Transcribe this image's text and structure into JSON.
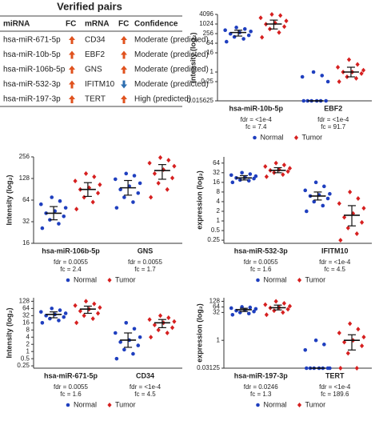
{
  "table": {
    "title": "Verified pairs",
    "header": [
      "miRNA",
      "FC",
      "mRNA",
      "FC",
      "Confidence"
    ],
    "rows": [
      {
        "mirna": "hsa-miR-671-5p",
        "mirna_fc": "up",
        "mrna": "CD34",
        "mrna_fc": "up",
        "confidence": "Moderate (predicted)"
      },
      {
        "mirna": "hsa-miR-10b-5p",
        "mirna_fc": "up",
        "mrna": "EBF2",
        "mrna_fc": "up",
        "confidence": "Moderate (predicted)"
      },
      {
        "mirna": "hsa-miR-106b-5p",
        "mirna_fc": "up",
        "mrna": "GNS",
        "mrna_fc": "up",
        "confidence": "Moderate (predicted)"
      },
      {
        "mirna": "hsa-miR-532-3p",
        "mirna_fc": "up",
        "mrna": "IFITM10",
        "mrna_fc": "down",
        "confidence": "Moderate (predicted)"
      },
      {
        "mirna": "hsa-miR-197-3p",
        "mirna_fc": "up",
        "mrna": "TERT",
        "mrna_fc": "up",
        "confidence": "High (predicted)"
      }
    ]
  },
  "chart_data": [
    {
      "type": "dot",
      "ylabel": "Intensity (log₂)",
      "log_base": 2,
      "categories": [
        "hsa-miR-10b-5p",
        "EBF2"
      ],
      "fdr": [
        "fdr = <1e-4",
        "fdr = <1e-4"
      ],
      "fc": [
        "fc = 7.4",
        "fc = 91.7"
      ],
      "ylim": [
        0.015625,
        4096
      ],
      "yticks": [
        0.015625,
        0.25,
        1,
        16,
        64,
        256,
        1024,
        4096
      ],
      "series": [
        {
          "name": "Normal",
          "color": "#1f3fbf",
          "marker": "circle",
          "points": [
            [
              80,
              120,
              160,
              200,
              250,
              300,
              350,
              420,
              500,
              620
            ],
            [
              0.015625,
              0.015625,
              0.015625,
              0.015625,
              0.015625,
              0.015625,
              0.25,
              0.5,
              0.6,
              1
            ]
          ],
          "medians": [
            300,
            0.015625
          ],
          "ranges": [
            [
              180,
              420
            ],
            [
              0.015625,
              0.015625
            ]
          ]
        },
        {
          "name": "Tumor",
          "color": "#d62020",
          "marker": "diamond",
          "points": [
            [
              150,
              300,
              500,
              700,
              1000,
              1200,
              1600,
              2500,
              3500,
              4096
            ],
            [
              0.25,
              0.4,
              0.5,
              0.8,
              1,
              1,
              1.3,
              2,
              3,
              6
            ]
          ],
          "medians": [
            1024,
            1
          ],
          "ranges": [
            [
              500,
              1800
            ],
            [
              0.5,
              2
            ]
          ]
        }
      ]
    },
    {
      "type": "dot",
      "ylabel": "Intensity (log₂)",
      "log_base": 2,
      "categories": [
        "hsa-miR-106b-5p",
        "GNS"
      ],
      "fdr": [
        "fdr = 0.0055",
        "fdr = 0.0055"
      ],
      "fc": [
        "fc = 2.4",
        "fc = 1.7"
      ],
      "ylim": [
        16,
        256
      ],
      "yticks": [
        16,
        32,
        64,
        128,
        256
      ],
      "series": [
        {
          "name": "Normal",
          "color": "#1f3fbf",
          "marker": "circle",
          "points": [
            [
              26,
              30,
              34,
              38,
              42,
              45,
              50,
              56,
              62,
              70
            ],
            [
              50,
              60,
              70,
              80,
              90,
              100,
              110,
              125,
              140,
              150
            ]
          ],
          "medians": [
            42,
            95
          ],
          "ranges": [
            [
              34,
              52
            ],
            [
              75,
              120
            ]
          ]
        },
        {
          "name": "Tumor",
          "color": "#d62020",
          "marker": "diamond",
          "points": [
            [
              48,
              60,
              70,
              80,
              90,
              95,
              105,
              118,
              135,
              150
            ],
            [
              70,
              90,
              110,
              130,
              150,
              170,
              190,
              210,
              230,
              250
            ]
          ],
          "medians": [
            90,
            165
          ],
          "ranges": [
            [
              72,
              112
            ],
            [
              125,
              200
            ]
          ]
        }
      ]
    },
    {
      "type": "dot",
      "ylabel": "expression (log₂)",
      "log_base": 2,
      "categories": [
        "hsa-miR-532-3p",
        "IFITM10"
      ],
      "fdr": [
        "fdr = 0.0055",
        "fdr = <1e-4"
      ],
      "fc": [
        "fc = 1.6",
        "fc = 4.5"
      ],
      "ylim": [
        0.2,
        100
      ],
      "yticks": [
        0.25,
        0.5,
        1,
        2,
        4,
        8,
        16,
        32,
        64
      ],
      "series": [
        {
          "name": "Normal",
          "color": "#1f3fbf",
          "marker": "circle",
          "points": [
            [
              16,
              18,
              19,
              21,
              22,
              23,
              25,
              27,
              29,
              32
            ],
            [
              2,
              3,
              4,
              5,
              6,
              6.5,
              7,
              9,
              12,
              16
            ]
          ],
          "medians": [
            22,
            6
          ],
          "ranges": [
            [
              19,
              26
            ],
            [
              4.5,
              8
            ]
          ]
        },
        {
          "name": "Tumor",
          "color": "#d62020",
          "marker": "diamond",
          "points": [
            [
              24,
              28,
              32,
              35,
              38,
              40,
              44,
              50,
              56,
              64
            ],
            [
              0.25,
              0.4,
              0.6,
              0.9,
              1.3,
              1.7,
              2.5,
              3.5,
              5,
              8
            ]
          ],
          "medians": [
            38,
            1.5
          ],
          "ranges": [
            [
              32,
              46
            ],
            [
              0.7,
              3
            ]
          ]
        }
      ]
    },
    {
      "type": "dot",
      "ylabel": "Intensity (log₂)",
      "log_base": 2,
      "categories": [
        "hsa-miR-671-5p",
        "CD34"
      ],
      "fdr": [
        "fdr = 0.0055",
        "fdr = <1e-4"
      ],
      "fc": [
        "fc = 1.6",
        "fc = 4.5"
      ],
      "ylim": [
        0.2,
        180
      ],
      "yticks": [
        0.25,
        0.5,
        1,
        2,
        4,
        8,
        16,
        32,
        64,
        128
      ],
      "series": [
        {
          "name": "Normal",
          "color": "#1f3fbf",
          "marker": "circle",
          "points": [
            [
              16,
              20,
              24,
              28,
              32,
              36,
              40,
              46,
              54,
              64
            ],
            [
              0.5,
              0.8,
              1.2,
              1.8,
              2.5,
              3,
              4,
              6,
              9,
              16
            ]
          ],
          "medians": [
            36,
            3
          ],
          "ranges": [
            [
              26,
              46
            ],
            [
              1.5,
              6
            ]
          ]
        },
        {
          "name": "Tumor",
          "color": "#d62020",
          "marker": "diamond",
          "points": [
            [
              16,
              24,
              32,
              40,
              50,
              60,
              70,
              85,
              100,
              128
            ],
            [
              4,
              6,
              8,
              10,
              13,
              16,
              18,
              22,
              26,
              32
            ]
          ],
          "medians": [
            60,
            16
          ],
          "ranges": [
            [
              40,
              80
            ],
            [
              10,
              22
            ]
          ]
        }
      ]
    },
    {
      "type": "dot",
      "ylabel": "expression (log₂)",
      "log_base": 2,
      "categories": [
        "hsa-miR-197-3p",
        "TERT"
      ],
      "fdr": [
        "fdr = 0.0246",
        "fdr = <1e-4"
      ],
      "fc": [
        "fc = 1.3",
        "fc = 189.6"
      ],
      "ylim": [
        0.03125,
        200
      ],
      "yticks": [
        0.03125,
        1,
        32,
        64,
        128
      ],
      "series": [
        {
          "name": "Normal",
          "color": "#1f3fbf",
          "marker": "circle",
          "points": [
            [
              24,
              28,
              32,
              36,
              40,
              45,
              50,
              55,
              60,
              64
            ],
            [
              0.03125,
              0.03125,
              0.03125,
              0.03125,
              0.03125,
              0.03125,
              0.03125,
              0.3,
              0.6,
              1
            ]
          ],
          "medians": [
            45,
            0.03125
          ],
          "ranges": [
            [
              36,
              54
            ],
            [
              0.03125,
              0.03125
            ]
          ]
        },
        {
          "name": "Tumor",
          "color": "#d62020",
          "marker": "diamond",
          "points": [
            [
              24,
              32,
              40,
              48,
              56,
              60,
              70,
              85,
              100,
              128
            ],
            [
              0.03125,
              0.03125,
              0.2,
              0.5,
              0.8,
              1,
              1.5,
              2.5,
              4,
              8
            ]
          ],
          "medians": [
            58,
            1
          ],
          "ranges": [
            [
              44,
              80
            ],
            [
              0.3,
              2
            ]
          ]
        }
      ]
    }
  ]
}
